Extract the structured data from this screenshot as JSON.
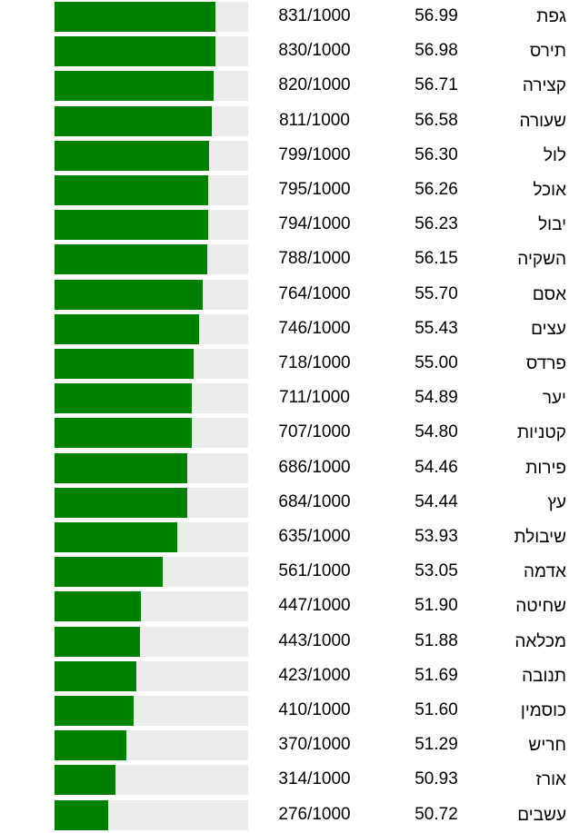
{
  "colors": {
    "bar_fill": "#008000",
    "bar_track": "#ececec"
  },
  "rows": [
    {
      "name": "גפת",
      "value": "56.99",
      "score_text": "831/1000",
      "score": 831
    },
    {
      "name": "תירס",
      "value": "56.98",
      "score_text": "830/1000",
      "score": 830
    },
    {
      "name": "קצירה",
      "value": "56.71",
      "score_text": "820/1000",
      "score": 820
    },
    {
      "name": "שעורה",
      "value": "56.58",
      "score_text": "811/1000",
      "score": 811
    },
    {
      "name": "לול",
      "value": "56.30",
      "score_text": "799/1000",
      "score": 799
    },
    {
      "name": "אוכל",
      "value": "56.26",
      "score_text": "795/1000",
      "score": 795
    },
    {
      "name": "יבול",
      "value": "56.23",
      "score_text": "794/1000",
      "score": 794
    },
    {
      "name": "השקיה",
      "value": "56.15",
      "score_text": "788/1000",
      "score": 788
    },
    {
      "name": "אסם",
      "value": "55.70",
      "score_text": "764/1000",
      "score": 764
    },
    {
      "name": "עצים",
      "value": "55.43",
      "score_text": "746/1000",
      "score": 746
    },
    {
      "name": "פרדס",
      "value": "55.00",
      "score_text": "718/1000",
      "score": 718
    },
    {
      "name": "יער",
      "value": "54.89",
      "score_text": "711/1000",
      "score": 711
    },
    {
      "name": "קטניות",
      "value": "54.80",
      "score_text": "707/1000",
      "score": 707
    },
    {
      "name": "פירות",
      "value": "54.46",
      "score_text": "686/1000",
      "score": 686
    },
    {
      "name": "עץ",
      "value": "54.44",
      "score_text": "684/1000",
      "score": 684
    },
    {
      "name": "שיבולת",
      "value": "53.93",
      "score_text": "635/1000",
      "score": 635
    },
    {
      "name": "אדמה",
      "value": "53.05",
      "score_text": "561/1000",
      "score": 561
    },
    {
      "name": "שחיטה",
      "value": "51.90",
      "score_text": "447/1000",
      "score": 447
    },
    {
      "name": "מכלאה",
      "value": "51.88",
      "score_text": "443/1000",
      "score": 443
    },
    {
      "name": "תנובה",
      "value": "51.69",
      "score_text": "423/1000",
      "score": 423
    },
    {
      "name": "כוסמין",
      "value": "51.60",
      "score_text": "410/1000",
      "score": 410
    },
    {
      "name": "חריש",
      "value": "51.29",
      "score_text": "370/1000",
      "score": 370
    },
    {
      "name": "אורז",
      "value": "50.93",
      "score_text": "314/1000",
      "score": 314
    },
    {
      "name": "עשבים",
      "value": "50.72",
      "score_text": "276/1000",
      "score": 276
    }
  ]
}
